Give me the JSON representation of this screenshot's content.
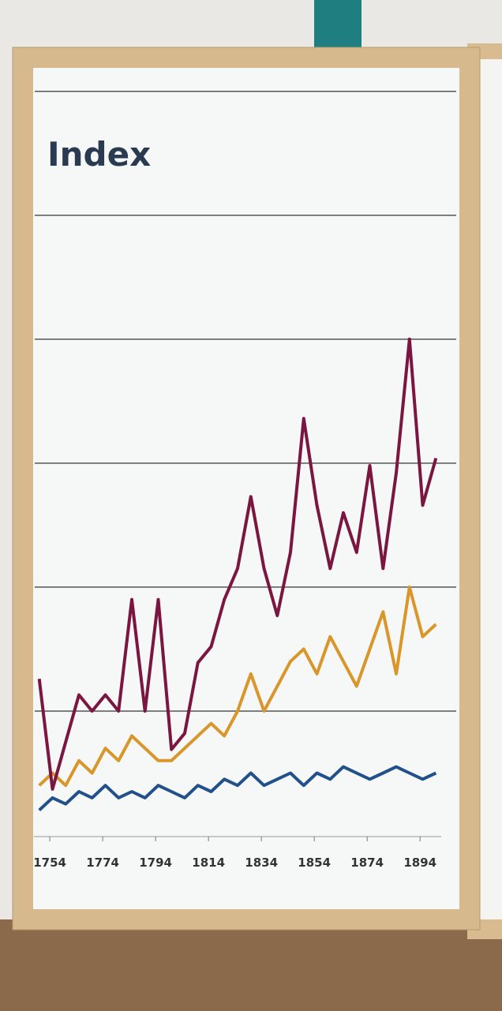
{
  "chart_data": {
    "type": "line",
    "title": "Index",
    "x": [
      1750,
      1755,
      1760,
      1765,
      1770,
      1775,
      1780,
      1785,
      1790,
      1795,
      1800,
      1805,
      1810,
      1815,
      1820,
      1825,
      1830,
      1835,
      1840,
      1845,
      1850,
      1855,
      1860,
      1865,
      1870,
      1875,
      1880,
      1885,
      1890,
      1895,
      1900
    ],
    "series": [
      {
        "color": "#7a1640",
        "values": [
          1.26,
          0.37,
          0.75,
          1.13,
          1.0,
          1.13,
          1.0,
          1.9,
          1.0,
          1.9,
          0.69,
          0.82,
          1.39,
          1.52,
          1.9,
          2.15,
          2.73,
          2.15,
          1.77,
          2.28,
          3.36,
          2.66,
          2.15,
          2.6,
          2.28,
          2.98,
          2.15,
          2.92,
          4.0,
          2.66,
          3.04
        ]
      },
      {
        "color": "#d9962a",
        "values": [
          0.4,
          0.5,
          0.4,
          0.6,
          0.5,
          0.7,
          0.6,
          0.8,
          0.7,
          0.6,
          0.6,
          0.7,
          0.8,
          0.9,
          0.8,
          1.0,
          1.3,
          1.0,
          1.2,
          1.4,
          1.5,
          1.3,
          1.6,
          1.4,
          1.2,
          1.5,
          1.8,
          1.3,
          2.0,
          1.6,
          1.7
        ]
      },
      {
        "color": "#22508a",
        "values": [
          0.2,
          0.3,
          0.25,
          0.35,
          0.3,
          0.4,
          0.3,
          0.35,
          0.3,
          0.4,
          0.35,
          0.3,
          0.4,
          0.35,
          0.45,
          0.4,
          0.5,
          0.4,
          0.45,
          0.5,
          0.4,
          0.5,
          0.45,
          0.55,
          0.5,
          0.45,
          0.5,
          0.55,
          0.5,
          0.45,
          0.5
        ]
      }
    ],
    "xlim": [
      1748,
      1902
    ],
    "xticks": [
      1754,
      1774,
      1794,
      1814,
      1834,
      1854,
      1874,
      1894
    ],
    "ylim": [
      0,
      6.1
    ],
    "gridlines": [
      1,
      2,
      3,
      4,
      5,
      6
    ],
    "grid": true
  }
}
